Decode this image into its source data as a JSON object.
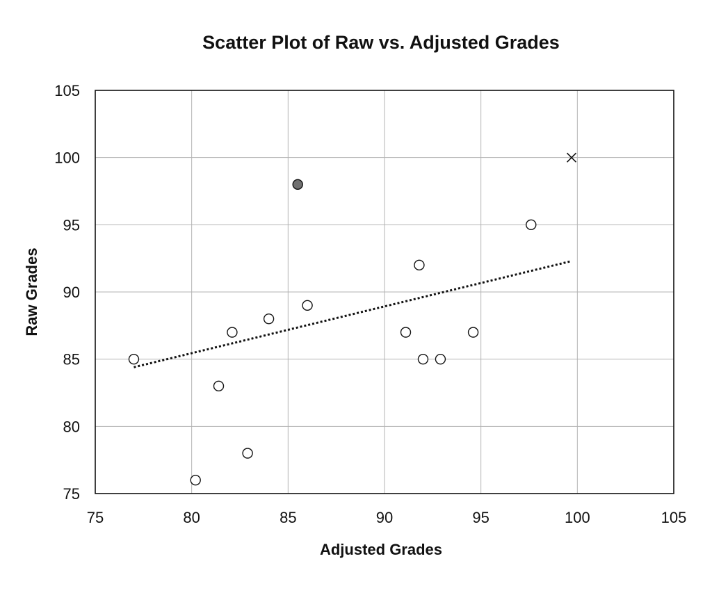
{
  "chart_data": {
    "type": "scatter",
    "title": "Scatter Plot of Raw vs. Adjusted Grades",
    "xlabel": "Adjusted Grades",
    "ylabel": "Raw Grades",
    "xlim": [
      75,
      105
    ],
    "ylim": [
      75,
      105
    ],
    "xticks": [
      75,
      80,
      85,
      90,
      95,
      100,
      105
    ],
    "yticks": [
      75,
      80,
      85,
      90,
      95,
      100,
      105
    ],
    "grid": true,
    "legend": "none",
    "series": [
      {
        "marker": "open-circle",
        "points": [
          {
            "x": 77.0,
            "y": 85
          },
          {
            "x": 80.2,
            "y": 76
          },
          {
            "x": 81.4,
            "y": 83
          },
          {
            "x": 82.1,
            "y": 87
          },
          {
            "x": 82.9,
            "y": 78
          },
          {
            "x": 84.0,
            "y": 88
          },
          {
            "x": 86.0,
            "y": 89
          },
          {
            "x": 91.1,
            "y": 87
          },
          {
            "x": 91.8,
            "y": 92
          },
          {
            "x": 92.0,
            "y": 85
          },
          {
            "x": 92.9,
            "y": 85
          },
          {
            "x": 94.6,
            "y": 87
          },
          {
            "x": 97.6,
            "y": 95
          }
        ]
      },
      {
        "marker": "filled-circle",
        "points": [
          {
            "x": 85.5,
            "y": 98
          }
        ]
      },
      {
        "marker": "x",
        "points": [
          {
            "x": 99.7,
            "y": 100
          }
        ]
      }
    ],
    "trendline": {
      "style": "dotted",
      "from": {
        "x": 77.0,
        "y": 84.4
      },
      "to": {
        "x": 99.7,
        "y": 92.3
      }
    },
    "colors": {
      "open_fill": "#ffffff",
      "filled_fill": "#707070",
      "stroke": "#111111",
      "grid": "#b3b3b3"
    }
  }
}
